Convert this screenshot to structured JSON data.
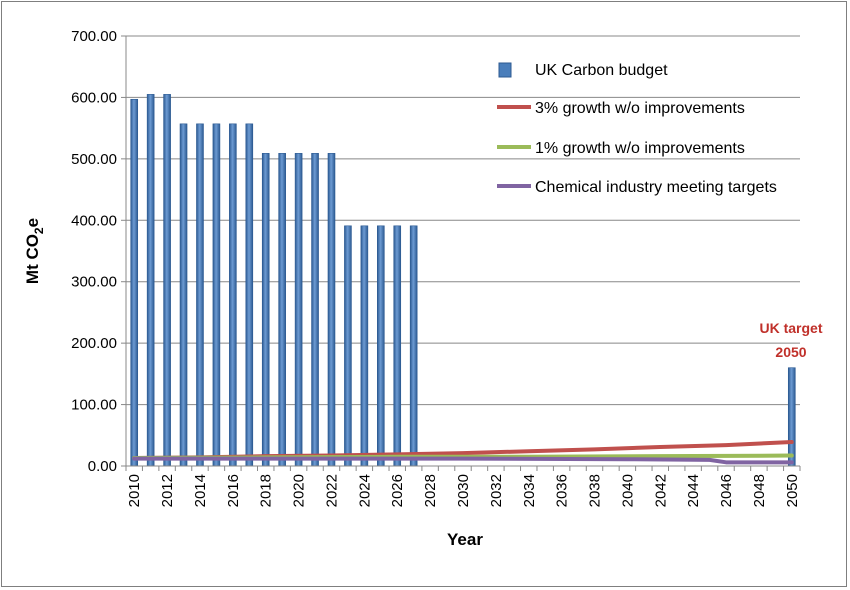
{
  "chart_data": {
    "type": "bar",
    "title": "",
    "xlabel": "Year",
    "ylabel_main": "Mt CO",
    "ylabel_sub": "2",
    "ylabel_suffix": "e",
    "ylim": [
      0,
      700
    ],
    "yticks": [
      "0.00",
      "100.00",
      "200.00",
      "300.00",
      "400.00",
      "500.00",
      "600.00",
      "700.00"
    ],
    "ytick_values": [
      0,
      100,
      200,
      300,
      400,
      500,
      600,
      700
    ],
    "x_start": 2010,
    "x_end": 2050,
    "x_tick_labels": [
      "2010",
      "2012",
      "2014",
      "2016",
      "2018",
      "2020",
      "2022",
      "2024",
      "2026",
      "2028",
      "2030",
      "2032",
      "2034",
      "2036",
      "2038",
      "2040",
      "2042",
      "2044",
      "2046",
      "2048",
      "2050"
    ],
    "grid": true,
    "legend_position": "top-right",
    "colors": {
      "bar": "#4a7ebb",
      "bar_dark": "#2c5a92",
      "growth3": "#c0504d",
      "growth1": "#9bbb59",
      "chem": "#8064a2",
      "annotation": "#c0302a"
    },
    "bars": {
      "name": "UK Carbon budget",
      "x": [
        2010,
        2011,
        2012,
        2013,
        2014,
        2015,
        2016,
        2017,
        2018,
        2019,
        2020,
        2021,
        2022,
        2023,
        2024,
        2025,
        2026,
        2027,
        2050
      ],
      "values": [
        597,
        605,
        605,
        557,
        557,
        557,
        557,
        557,
        509,
        509,
        509,
        509,
        509,
        391,
        391,
        391,
        391,
        391,
        160
      ]
    },
    "lines": [
      {
        "name": "3% growth w/o improvements",
        "key": "growth3",
        "x": [
          2010,
          2014,
          2018,
          2022,
          2026,
          2030,
          2034,
          2038,
          2042,
          2046,
          2050
        ],
        "values": [
          13,
          14,
          16,
          17,
          19,
          21,
          24,
          27,
          31,
          34,
          39
        ]
      },
      {
        "name": "1% growth w/o improvements",
        "key": "growth1",
        "x": [
          2010,
          2018,
          2026,
          2034,
          2042,
          2050
        ],
        "values": [
          13,
          14,
          15,
          15,
          16,
          17
        ]
      },
      {
        "name": "Chemical industry meeting targets",
        "key": "chem",
        "x": [
          2010,
          2020,
          2030,
          2040,
          2045,
          2046,
          2050
        ],
        "values": [
          12,
          12,
          12,
          11,
          10,
          6,
          6
        ]
      }
    ],
    "annotation": {
      "line1": "UK target",
      "line2": "2050"
    }
  }
}
